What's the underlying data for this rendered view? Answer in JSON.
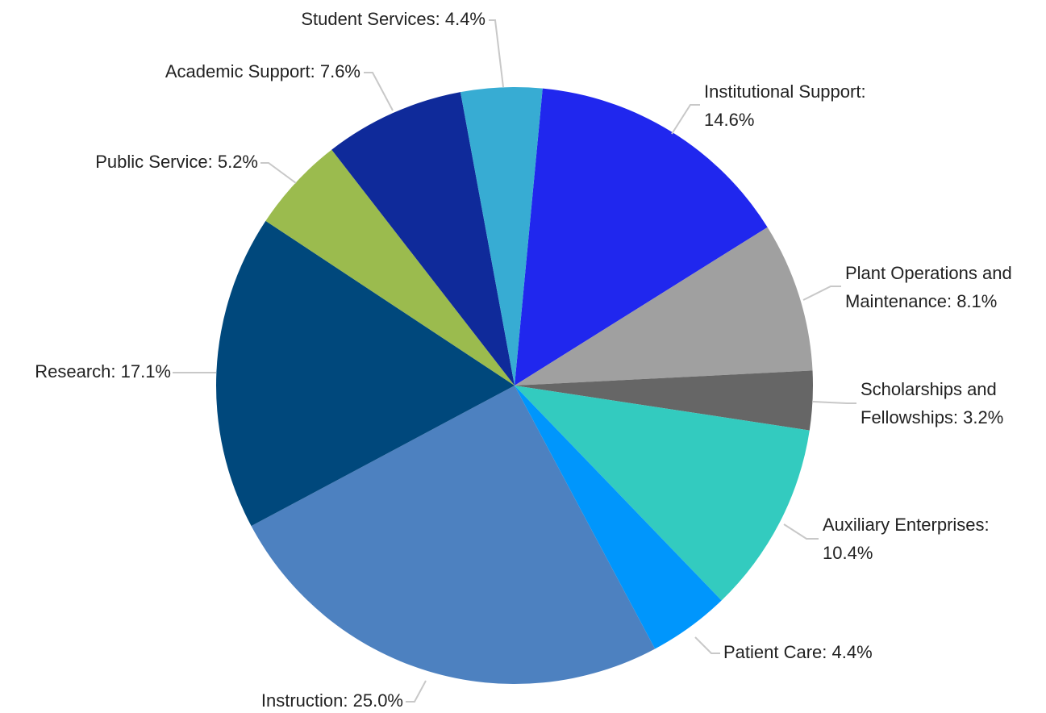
{
  "chart_data": {
    "type": "pie",
    "values": [
      14.6,
      8.1,
      3.2,
      10.4,
      4.4,
      25.0,
      17.1,
      5.2,
      7.6,
      4.4
    ],
    "value_labels": [
      [
        "Institutional Support:",
        "14.6%"
      ],
      [
        "Plant Operations and",
        "Maintenance: 8.1%"
      ],
      [
        "Scholarships and",
        "Fellowships: 3.2%"
      ],
      [
        "Auxiliary Enterprises:",
        "10.4%"
      ],
      [
        "Patient Care: 4.4%"
      ],
      [
        "Instruction: 25.0%"
      ],
      [
        "Research: 17.1%"
      ],
      [
        "Public Service: 5.2%"
      ],
      [
        "Academic Support: 7.6%"
      ],
      [
        "Student Services: 4.4%"
      ]
    ],
    "colors": [
      "#2027ee",
      "#a0a0a0",
      "#666666",
      "#33cbbf",
      "#0096fc",
      "#4d81c0",
      "#00487c",
      "#9bbb4e",
      "#0f2a9a",
      "#37acd3"
    ]
  }
}
